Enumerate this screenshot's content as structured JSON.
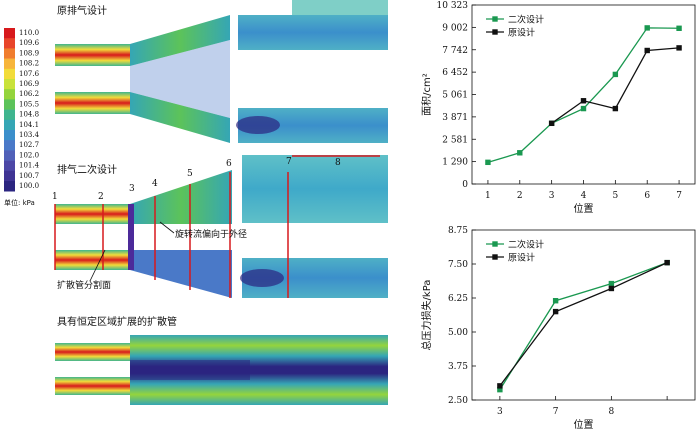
{
  "colorbar": {
    "ticks": [
      "110.0",
      "109.6",
      "108.9",
      "108.2",
      "107.6",
      "106.9",
      "106.2",
      "105.5",
      "104.8",
      "104.1",
      "103.4",
      "102.7",
      "102.0",
      "101.4",
      "100.7",
      "100.0"
    ],
    "unit_label": "单位: kPa",
    "colors": [
      "#d7191c",
      "#e8452a",
      "#f07d2e",
      "#f7b53b",
      "#f2dc3a",
      "#c9e23a",
      "#94d43c",
      "#5cc35a",
      "#3fb58e",
      "#35a6b5",
      "#3b8fcb",
      "#4a79c8",
      "#5060b8",
      "#4c47a6",
      "#3f3494",
      "#2b2580"
    ]
  },
  "panels": {
    "panel1_title": "原排气设计",
    "panel2_title": "排气二次设计",
    "panel3_title": "具有恒定区域扩展的扩散管",
    "annotation_swirl": "旋转流偏向于外径",
    "annotation_section": "扩散管分割面",
    "section_labels": [
      "1",
      "2",
      "3",
      "4",
      "5",
      "6",
      "7",
      "8"
    ]
  },
  "chart_data": [
    {
      "type": "line",
      "x": [
        1,
        2,
        3,
        4,
        5,
        6,
        7
      ],
      "xticks": [
        "1",
        "2",
        "3",
        "4",
        "5",
        "6",
        "7"
      ],
      "xlabel": "位置",
      "ylabel": "面积/cm²",
      "yticks": [
        "0",
        "1 290",
        "2 581",
        "3 871",
        "5 061",
        "6 452",
        "7 742",
        "9 002",
        "10 323"
      ],
      "ylim": [
        0,
        10323
      ],
      "legend_position": "top-left",
      "series": [
        {
          "name": "二次设计",
          "color": "#1a9850",
          "marker": "square",
          "values": [
            1250,
            1800,
            3500,
            4350,
            6320,
            9002,
            8980
          ]
        },
        {
          "name": "原设计",
          "color": "#111111",
          "marker": "square",
          "values": [
            null,
            null,
            3500,
            4800,
            4350,
            7700,
            7850
          ]
        }
      ]
    },
    {
      "type": "line",
      "categories": [
        "3",
        "7",
        "8",
        ""
      ],
      "xlabel": "位置",
      "ylabel": "总压力损失/kPa",
      "yticks": [
        "2.50",
        "3.75",
        "5.00",
        "6.25",
        "7.50",
        "8.75"
      ],
      "ylim": [
        2.5,
        8.75
      ],
      "legend_position": "top-left",
      "series": [
        {
          "name": "二次设计",
          "color": "#1a9850",
          "marker": "square",
          "values": [
            2.88,
            6.15,
            6.78,
            7.55
          ]
        },
        {
          "name": "原设计",
          "color": "#111111",
          "marker": "square",
          "values": [
            3.02,
            5.75,
            6.6,
            7.55
          ]
        }
      ]
    }
  ]
}
